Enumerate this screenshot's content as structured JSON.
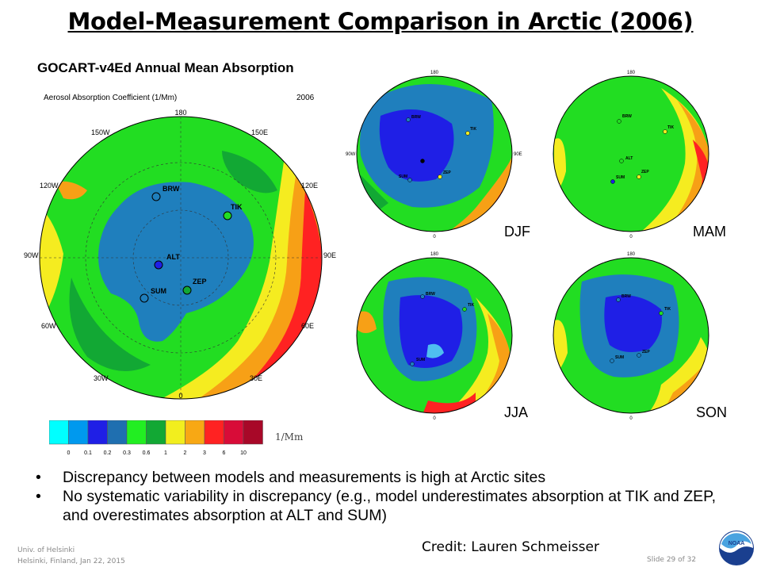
{
  "slide": {
    "title": "Model-Measurement Comparison in Arctic (2006)",
    "map_title": "GOCART-v4Ed Annual Mean Absorption",
    "map_subtitle": "Aerosol Absorption Coefficient (1/Mm)",
    "map_year": "2006",
    "credit": "Credit: Lauren Schmeisser",
    "footer_left_1": "Univ. of Helsinki",
    "footer_left_2": "Helsinki, Finland, Jan 22, 2015",
    "footer_right": "Slide 29 of 32",
    "logo_text": "NOAA"
  },
  "longitude_labels": {
    "top": "180",
    "bottom": "0",
    "left": "90W",
    "right": "90E",
    "upper_left": "150W",
    "upper_right": "150E",
    "mid_upper_left": "120W",
    "mid_upper_right": "120E",
    "mid_lower_left": "60W",
    "mid_lower_right": "60E",
    "lower_left": "30W",
    "lower_right": "30E"
  },
  "sites": [
    "BRW",
    "TIK",
    "ALT",
    "ZEP",
    "SUM"
  ],
  "seasons": [
    {
      "key": "djf",
      "label": "DJF"
    },
    {
      "key": "mam",
      "label": "MAM"
    },
    {
      "key": "jja",
      "label": "JJA"
    },
    {
      "key": "son",
      "label": "SON"
    }
  ],
  "colorbar": {
    "unit": "1/Mm",
    "ticks": [
      "0",
      "0.1",
      "0.2",
      "0.3",
      "0.6",
      "1",
      "2",
      "3",
      "6",
      "10"
    ],
    "colors": [
      "#00ffff",
      "#0099ee",
      "#1f1fe6",
      "#1f6fb0",
      "#22ee22",
      "#12a834",
      "#f2ee1e",
      "#f8a814",
      "#ff2222",
      "#d80c38",
      "#a80828"
    ]
  },
  "bullets": [
    "Discrepancy between models and measurements is high at Arctic sites",
    "No systematic variability in discrepancy (e.g., model underestimates absorption at TIK and ZEP, and overestimates absorption at ALT and SUM)"
  ]
}
